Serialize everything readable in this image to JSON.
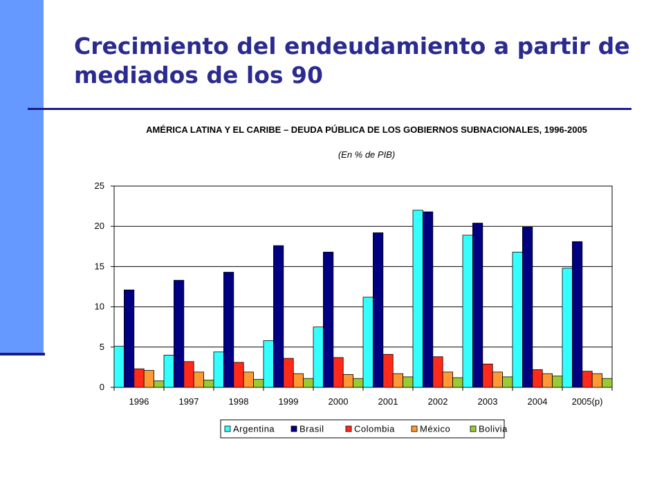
{
  "slide": {
    "title": "Crecimiento del endeudamiento a partir de mediados de los 90"
  },
  "chart_data": {
    "type": "bar",
    "title": "AMÉRICA LATINA Y EL CARIBE – DEUDA PÚBLICA DE LOS GOBIERNOS SUBNACIONALES, 1996-2005",
    "subtitle": "(En % de PIB)",
    "categories": [
      "1996",
      "1997",
      "1998",
      "1999",
      "2000",
      "2001",
      "2002",
      "2003",
      "2004",
      "2005(p)"
    ],
    "ylim": [
      0,
      25
    ],
    "yticks": [
      0,
      5,
      10,
      15,
      20,
      25
    ],
    "grid": true,
    "legend_position": "bottom",
    "series": [
      {
        "name": "Argentina",
        "color": "#33ffff",
        "values": [
          5.1,
          4.0,
          4.4,
          5.8,
          7.5,
          11.2,
          22.0,
          18.9,
          16.8,
          14.8
        ]
      },
      {
        "name": "Brasil",
        "color": "#000080",
        "values": [
          12.1,
          13.3,
          14.3,
          17.6,
          16.8,
          19.2,
          21.8,
          20.4,
          19.9,
          18.1
        ]
      },
      {
        "name": "Colombia",
        "color": "#ff2a1a",
        "values": [
          2.3,
          3.2,
          3.1,
          3.6,
          3.7,
          4.1,
          3.8,
          2.9,
          2.2,
          2.0
        ]
      },
      {
        "name": "México",
        "color": "#ff9933",
        "values": [
          2.1,
          1.9,
          1.9,
          1.7,
          1.6,
          1.7,
          1.9,
          1.9,
          1.7,
          1.7
        ]
      },
      {
        "name": "Bolivia",
        "color": "#99cc33",
        "values": [
          0.8,
          0.9,
          1.0,
          1.1,
          1.1,
          1.3,
          1.2,
          1.3,
          1.4,
          1.1
        ]
      }
    ]
  }
}
